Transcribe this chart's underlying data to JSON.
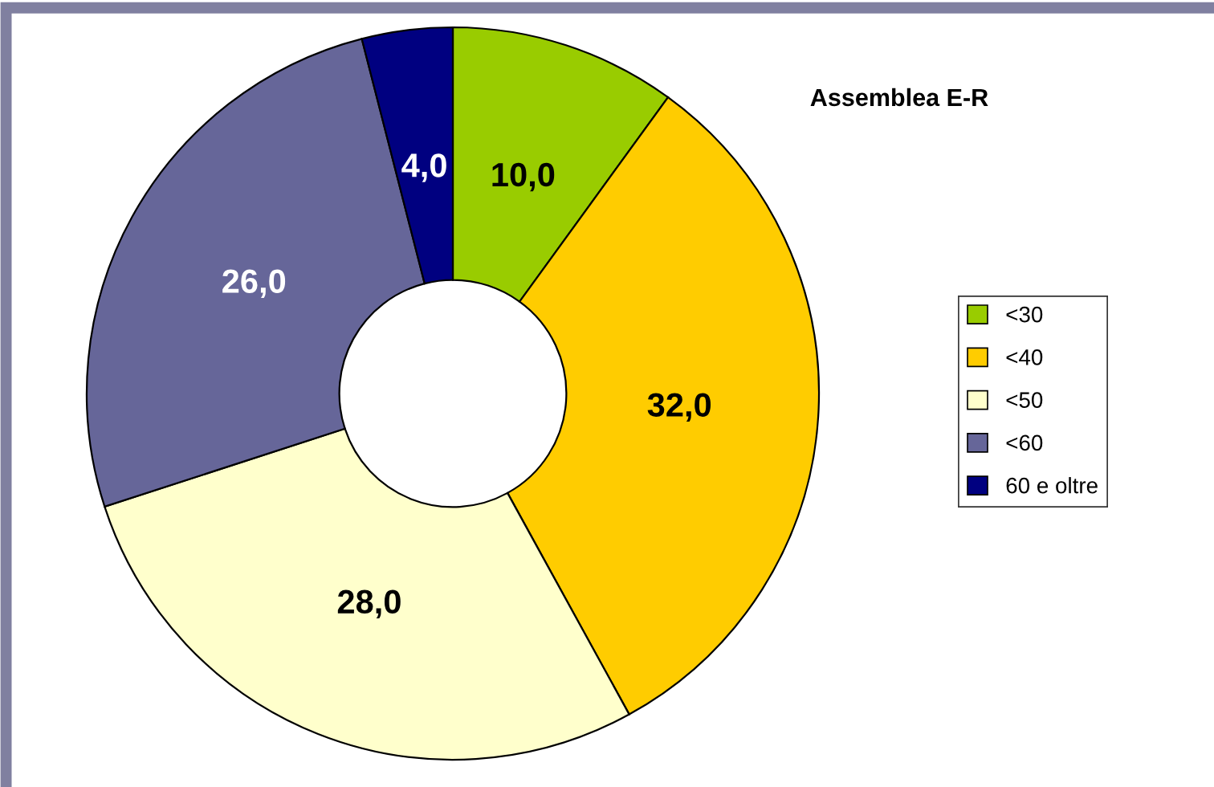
{
  "chart_data": {
    "type": "donut",
    "title": "Assemblea E-R",
    "categories": [
      "<30",
      "<40",
      "<50",
      "<60",
      "60 e oltre"
    ],
    "values": [
      10,
      32,
      28,
      26,
      4
    ],
    "colors": [
      "#99cc00",
      "#ffcc00",
      "#ffffcc",
      "#666699",
      "#000080"
    ],
    "value_labels": [
      "10,0",
      "32,0",
      "28,0",
      "26,0",
      "4,0"
    ],
    "legend": "right"
  }
}
